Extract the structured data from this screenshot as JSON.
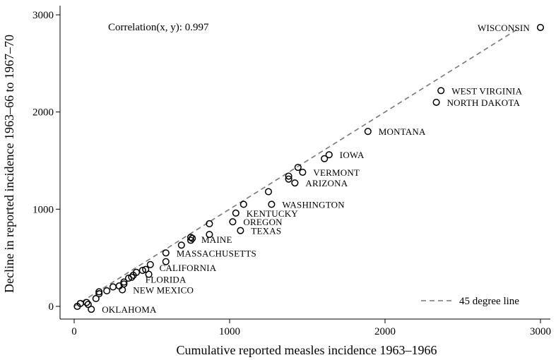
{
  "chart_data": {
    "type": "scatter",
    "xlabel": "Cumulative reported measles incidence 1963–1966",
    "ylabel": "Decline in reported incidence 1963–66 to 1967–70",
    "xlim": [
      -100,
      3050
    ],
    "ylim": [
      -130,
      3060
    ],
    "xticks": [
      0,
      1000,
      2000,
      3000
    ],
    "yticks": [
      0,
      1000,
      2000,
      3000
    ],
    "annotation": "Correlation(x, y): 0.997",
    "reference_line": {
      "label": "45 degree line",
      "from": [
        0,
        0
      ],
      "to": [
        2850,
        2850
      ],
      "color": "#777777",
      "style": "dashed"
    },
    "legend_position": "bottom-right",
    "grid": false,
    "labeled_points": [
      {
        "label": "WISCONSIN",
        "x": 3000,
        "y": 2870
      },
      {
        "label": "WEST VIRGINIA",
        "x": 2360,
        "y": 2220
      },
      {
        "label": "NORTH DAKOTA",
        "x": 2330,
        "y": 2100
      },
      {
        "label": "MONTANA",
        "x": 1890,
        "y": 1800
      },
      {
        "label": "IOWA",
        "x": 1640,
        "y": 1560
      },
      {
        "label": "VERMONT",
        "x": 1470,
        "y": 1380
      },
      {
        "label": "ARIZONA",
        "x": 1420,
        "y": 1270
      },
      {
        "label": "WASHINGTON",
        "x": 1270,
        "y": 1050
      },
      {
        "label": "KENTUCKY",
        "x": 1040,
        "y": 960
      },
      {
        "label": "OREGON",
        "x": 1020,
        "y": 870
      },
      {
        "label": "TEXAS",
        "x": 1070,
        "y": 780
      },
      {
        "label": "MAINE",
        "x": 750,
        "y": 690
      },
      {
        "label": "MASSACHUSETTS",
        "x": 590,
        "y": 550
      },
      {
        "label": "CALIFORNIA",
        "x": 480,
        "y": 400
      },
      {
        "label": "FLORIDA",
        "x": 390,
        "y": 280
      },
      {
        "label": "NEW MEXICO",
        "x": 310,
        "y": 170
      },
      {
        "label": "OKLAHOMA",
        "x": 110,
        "y": -30
      }
    ],
    "points": [
      {
        "x": 3000,
        "y": 2870
      },
      {
        "x": 2360,
        "y": 2220
      },
      {
        "x": 2330,
        "y": 2100
      },
      {
        "x": 1890,
        "y": 1800
      },
      {
        "x": 1640,
        "y": 1560
      },
      {
        "x": 1610,
        "y": 1520
      },
      {
        "x": 1470,
        "y": 1380
      },
      {
        "x": 1440,
        "y": 1430
      },
      {
        "x": 1380,
        "y": 1340
      },
      {
        "x": 1380,
        "y": 1310
      },
      {
        "x": 1420,
        "y": 1270
      },
      {
        "x": 1250,
        "y": 1180
      },
      {
        "x": 1090,
        "y": 1050
      },
      {
        "x": 1270,
        "y": 1050
      },
      {
        "x": 1040,
        "y": 960
      },
      {
        "x": 1020,
        "y": 870
      },
      {
        "x": 1070,
        "y": 780
      },
      {
        "x": 870,
        "y": 850
      },
      {
        "x": 870,
        "y": 740
      },
      {
        "x": 750,
        "y": 710
      },
      {
        "x": 760,
        "y": 700
      },
      {
        "x": 750,
        "y": 680
      },
      {
        "x": 690,
        "y": 630
      },
      {
        "x": 590,
        "y": 550
      },
      {
        "x": 590,
        "y": 460
      },
      {
        "x": 490,
        "y": 430
      },
      {
        "x": 460,
        "y": 380
      },
      {
        "x": 440,
        "y": 370
      },
      {
        "x": 400,
        "y": 350
      },
      {
        "x": 380,
        "y": 320
      },
      {
        "x": 370,
        "y": 300
      },
      {
        "x": 350,
        "y": 290
      },
      {
        "x": 320,
        "y": 250
      },
      {
        "x": 320,
        "y": 230
      },
      {
        "x": 480,
        "y": 330
      },
      {
        "x": 310,
        "y": 170
      },
      {
        "x": 290,
        "y": 210
      },
      {
        "x": 250,
        "y": 200
      },
      {
        "x": 210,
        "y": 160
      },
      {
        "x": 160,
        "y": 150
      },
      {
        "x": 160,
        "y": 130
      },
      {
        "x": 140,
        "y": 80
      },
      {
        "x": 110,
        "y": -30
      },
      {
        "x": 90,
        "y": 20
      },
      {
        "x": 80,
        "y": 40
      },
      {
        "x": 40,
        "y": 30
      },
      {
        "x": 20,
        "y": 0
      }
    ]
  }
}
